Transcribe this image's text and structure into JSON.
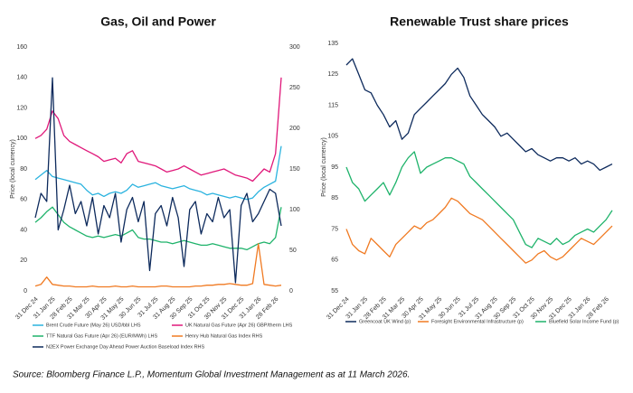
{
  "chart_data": [
    {
      "type": "line",
      "title": "Gas, Oil and Power",
      "ylabel": "Price (local currency)",
      "categories": [
        "31 Dec 24",
        null,
        null,
        "31 Jan 25",
        null,
        null,
        "28 Feb 25",
        null,
        null,
        "31 Mar 25",
        null,
        null,
        "30 Apr 25",
        null,
        null,
        "31 May 25",
        null,
        null,
        "30 Jun 25",
        null,
        null,
        "31 Jul 25",
        null,
        null,
        "31 Aug 25",
        null,
        null,
        "30 Sep 25",
        null,
        null,
        "31 Oct 25",
        null,
        null,
        "30 Nov 25",
        null,
        null,
        "31 Dec 25",
        null,
        null,
        "31 Jan 26",
        null,
        null,
        "28 Feb 26",
        null
      ],
      "ylim": [
        0,
        160
      ],
      "yticks": [
        0,
        20,
        40,
        60,
        80,
        100,
        120,
        140,
        160
      ],
      "y2lim": [
        0,
        300
      ],
      "y2ticks": [
        0,
        50,
        100,
        150,
        200,
        250,
        300
      ],
      "series": [
        {
          "name": "Brent Crude Future (May 26) USD/bbl LHS",
          "color": "#2bb3df",
          "values": [
            73,
            76,
            79,
            75,
            74,
            73,
            72,
            71,
            70,
            66,
            63,
            64,
            62,
            64,
            65,
            64,
            66,
            70,
            68,
            69,
            70,
            71,
            69,
            68,
            67,
            68,
            69,
            67,
            66,
            65,
            63,
            64,
            63,
            62,
            61,
            62,
            61,
            60,
            61,
            65,
            68,
            70,
            72,
            95
          ]
        },
        {
          "name": "UK Natural Gas Future (Apr 26) GBP/therm LHS",
          "color": "#e0187a",
          "values": [
            100,
            102,
            106,
            118,
            113,
            102,
            98,
            96,
            94,
            92,
            90,
            88,
            85,
            86,
            87,
            84,
            90,
            92,
            85,
            84,
            83,
            82,
            80,
            78,
            79,
            80,
            82,
            80,
            78,
            76,
            77,
            78,
            79,
            80,
            78,
            76,
            75,
            74,
            72,
            76,
            80,
            78,
            90,
            140
          ]
        },
        {
          "name": "TTF Natural Gas Future (Apr 26) (EUR/MWh) LHS",
          "color": "#1fb36b",
          "values": [
            45,
            48,
            52,
            55,
            50,
            45,
            42,
            40,
            38,
            36,
            35,
            36,
            35,
            36,
            37,
            36,
            38,
            40,
            35,
            34,
            34,
            33,
            32,
            32,
            31,
            32,
            33,
            32,
            31,
            30,
            30,
            31,
            30,
            29,
            28,
            28,
            28,
            27,
            29,
            31,
            32,
            31,
            35,
            55
          ]
        },
        {
          "name": "Henry Hub Natural Gas Index RHS",
          "color": "#f07a22",
          "axis": "y2",
          "values": [
            6,
            8,
            17,
            8,
            7,
            6,
            6,
            5,
            5,
            5,
            6,
            5,
            5,
            5,
            6,
            5,
            5,
            6,
            5,
            5,
            5,
            5,
            6,
            6,
            5,
            5,
            5,
            5,
            6,
            6,
            7,
            7,
            8,
            8,
            9,
            8,
            7,
            7,
            9,
            58,
            8,
            7,
            6,
            7
          ]
        },
        {
          "name": "N2EX Power Exchange Day Ahead Power Auction Baseload Index RHS",
          "color": "#0d2a5c",
          "axis": "y2",
          "values": [
            90,
            120,
            110,
            262,
            75,
            100,
            130,
            95,
            110,
            80,
            115,
            70,
            105,
            90,
            120,
            60,
            100,
            115,
            85,
            110,
            25,
            95,
            105,
            80,
            115,
            90,
            30,
            100,
            110,
            70,
            95,
            85,
            115,
            90,
            100,
            10,
            105,
            120,
            85,
            95,
            110,
            125,
            120,
            80
          ]
        }
      ]
    },
    {
      "type": "line",
      "title": "Renewable Trust share prices",
      "ylabel": "Price (local currency)",
      "categories": [
        "31 Dec 24",
        null,
        null,
        "31 Jan 25",
        null,
        null,
        "28 Feb 25",
        null,
        null,
        "31 Mar 25",
        null,
        null,
        "30 Apr 25",
        null,
        null,
        "31 May 25",
        null,
        null,
        "30 Jun 25",
        null,
        null,
        "31 Jul 25",
        null,
        null,
        "31 Aug 25",
        null,
        null,
        "30 Sep 25",
        null,
        null,
        "31 Oct 25",
        null,
        null,
        "30 Nov 25",
        null,
        null,
        "31 Dec 25",
        null,
        null,
        "31 Jan 26",
        null,
        null,
        "28 Feb 26",
        null
      ],
      "ylim": [
        55,
        135
      ],
      "yticks": [
        55,
        65,
        75,
        85,
        95,
        105,
        115,
        125,
        135
      ],
      "series": [
        {
          "name": "Greencoat UK Wind (p)",
          "color": "#0d2a5c",
          "values": [
            128,
            130,
            125,
            120,
            119,
            115,
            112,
            108,
            110,
            104,
            106,
            112,
            114,
            116,
            118,
            120,
            122,
            125,
            127,
            124,
            118,
            115,
            112,
            110,
            108,
            105,
            106,
            104,
            102,
            100,
            101,
            99,
            98,
            97,
            98,
            98,
            97,
            98,
            96,
            97,
            96,
            94,
            95,
            96
          ]
        },
        {
          "name": "Foresight Environmental Infrastructure (p)",
          "color": "#f07a22",
          "values": [
            75,
            70,
            68,
            67,
            72,
            70,
            68,
            66,
            70,
            72,
            74,
            76,
            75,
            77,
            78,
            80,
            82,
            85,
            84,
            82,
            80,
            79,
            78,
            76,
            74,
            72,
            70,
            68,
            66,
            64,
            65,
            67,
            68,
            66,
            65,
            66,
            68,
            70,
            72,
            71,
            70,
            72,
            74,
            76
          ]
        },
        {
          "name": "Bluefield Solar Income Fund (p)",
          "color": "#1fb36b",
          "values": [
            95,
            90,
            88,
            84,
            86,
            88,
            90,
            86,
            90,
            95,
            98,
            100,
            93,
            95,
            96,
            97,
            98,
            98,
            97,
            96,
            92,
            90,
            88,
            86,
            84,
            82,
            80,
            78,
            74,
            70,
            69,
            72,
            71,
            70,
            72,
            70,
            71,
            73,
            74,
            75,
            74,
            76,
            78,
            81
          ]
        }
      ]
    }
  ],
  "source": "Source: Bloomberg Finance L.P., Momentum Global Investment Management as at 11 March 2026."
}
